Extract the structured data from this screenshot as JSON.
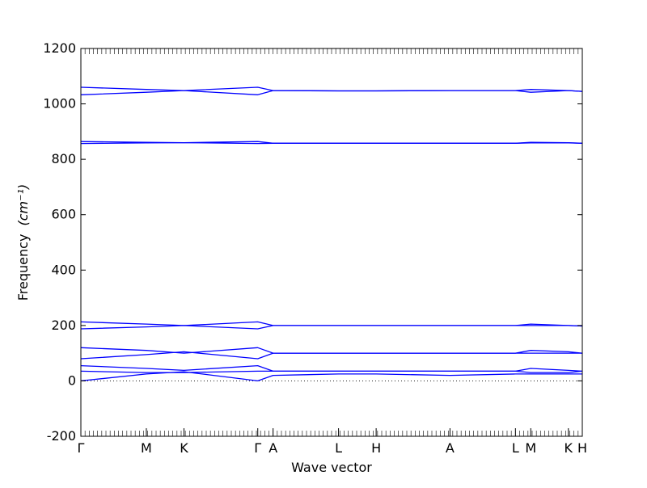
{
  "chart_data": {
    "type": "line",
    "title": "",
    "xlabel": "Wave vector",
    "ylabel": "Frequency",
    "ylabel_unit": "(cm⁻¹)",
    "ylim": [
      -200,
      1200
    ],
    "yticks": [
      -200,
      0,
      200,
      400,
      600,
      800,
      1000,
      1200
    ],
    "xlim": [
      0,
      18
    ],
    "high_symmetry_points": [
      {
        "label": "Γ",
        "x": 0
      },
      {
        "label": "M",
        "x": 2.35
      },
      {
        "label": "K",
        "x": 3.7
      },
      {
        "label": "Γ",
        "x": 6.35
      },
      {
        "label": "A",
        "x": 6.9
      },
      {
        "label": "L",
        "x": 9.25
      },
      {
        "label": "H",
        "x": 10.6
      },
      {
        "label": "A",
        "x": 13.25
      },
      {
        "label": "L",
        "x": 15.6
      },
      {
        "label": "M",
        "x": 16.15
      },
      {
        "label": "K",
        "x": 17.5
      },
      {
        "label": "H",
        "x": 18
      }
    ],
    "zero_line": true,
    "grid": false,
    "line_color": "#0000ff",
    "series": [
      {
        "x": [
          0,
          2.35,
          3.7,
          6.35,
          6.9,
          9.25,
          10.6,
          13.25,
          15.6,
          16.15,
          17.5,
          18
        ],
        "values": [
          0,
          25,
          33,
          0,
          20,
          25,
          25,
          20,
          25,
          25,
          25,
          25
        ]
      },
      {
        "x": [
          0,
          2.35,
          3.7,
          6.35,
          6.9,
          9.25,
          10.6,
          13.25,
          15.6,
          16.15,
          17.5,
          18
        ],
        "values": [
          35,
          30,
          30,
          35,
          35,
          35,
          35,
          35,
          35,
          30,
          30,
          35
        ]
      },
      {
        "x": [
          0,
          2.35,
          3.7,
          6.35,
          6.9,
          9.25,
          10.6,
          13.25,
          15.6,
          16.15,
          17.5,
          18
        ],
        "values": [
          55,
          45,
          38,
          55,
          35,
          35,
          35,
          35,
          35,
          45,
          38,
          35
        ]
      },
      {
        "x": [
          0,
          2.35,
          3.7,
          6.35,
          6.9,
          9.25,
          10.6,
          13.25,
          15.6,
          16.15,
          17.5,
          18
        ],
        "values": [
          80,
          95,
          105,
          80,
          100,
          100,
          100,
          100,
          100,
          100,
          100,
          100
        ]
      },
      {
        "x": [
          0,
          2.35,
          3.7,
          6.35,
          6.9,
          9.25,
          10.6,
          13.25,
          15.6,
          16.15,
          17.5,
          18
        ],
        "values": [
          120,
          110,
          100,
          120,
          100,
          100,
          100,
          100,
          100,
          110,
          105,
          100
        ]
      },
      {
        "x": [
          0,
          2.35,
          3.7,
          6.35,
          6.9,
          9.25,
          10.6,
          13.25,
          15.6,
          16.15,
          17.5,
          18
        ],
        "values": [
          188,
          195,
          200,
          188,
          200,
          200,
          200,
          200,
          200,
          200,
          200,
          198
        ]
      },
      {
        "x": [
          0,
          2.35,
          3.7,
          6.35,
          6.9,
          9.25,
          10.6,
          13.25,
          15.6,
          16.15,
          17.5,
          18
        ],
        "values": [
          213,
          205,
          200,
          213,
          200,
          200,
          200,
          200,
          200,
          205,
          200,
          198
        ]
      },
      {
        "x": [
          0,
          2.35,
          3.7,
          6.35,
          6.9,
          9.25,
          10.6,
          13.25,
          15.6,
          16.15,
          17.5,
          18
        ],
        "values": [
          857,
          859,
          860,
          857,
          858,
          858,
          858,
          858,
          858,
          859,
          859,
          858
        ]
      },
      {
        "x": [
          0,
          2.35,
          3.7,
          6.35,
          6.9,
          9.25,
          10.6,
          13.25,
          15.6,
          16.15,
          17.5,
          18
        ],
        "values": [
          864,
          861,
          860,
          864,
          858,
          858,
          858,
          858,
          858,
          861,
          860,
          858
        ]
      },
      {
        "x": [
          0,
          2.35,
          3.7,
          6.35,
          6.9,
          9.25,
          10.6,
          13.25,
          15.6,
          16.15,
          17.5,
          18
        ],
        "values": [
          1033,
          1042,
          1048,
          1033,
          1048,
          1047,
          1047,
          1048,
          1048,
          1042,
          1048,
          1045
        ]
      },
      {
        "x": [
          0,
          2.35,
          3.7,
          6.35,
          6.9,
          9.25,
          10.6,
          13.25,
          15.6,
          16.15,
          17.5,
          18
        ],
        "values": [
          1060,
          1052,
          1048,
          1060,
          1048,
          1047,
          1047,
          1048,
          1048,
          1052,
          1048,
          1045
        ]
      }
    ]
  }
}
